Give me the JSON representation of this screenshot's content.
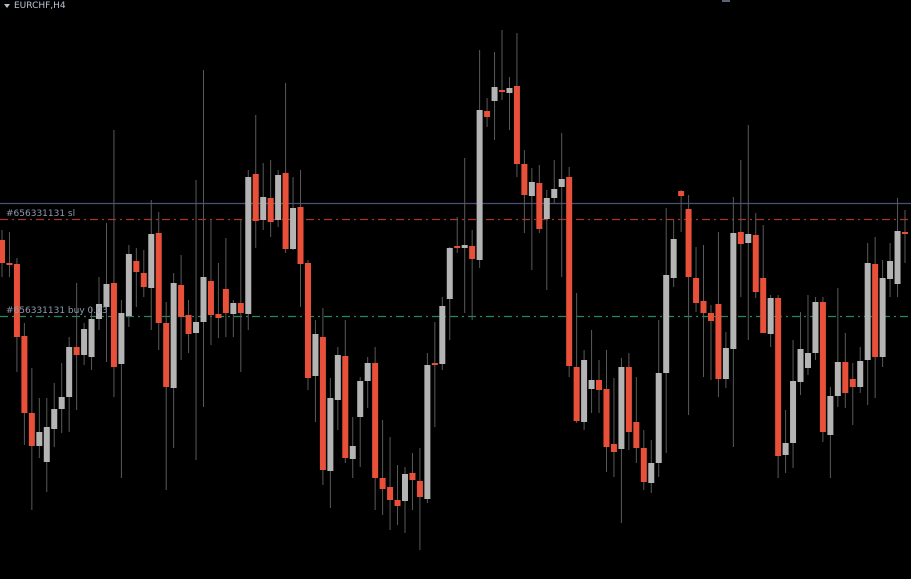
{
  "header": {
    "symbol_timeframe": "EURCHF,H4",
    "menu_icon": "triangle-down-icon"
  },
  "chart_data": {
    "type": "candlestick",
    "title": "EURCHF,H4",
    "xlabel": "",
    "ylabel": "",
    "ylim": [
      0,
      579
    ],
    "grid": false,
    "colors": {
      "background": "#000000",
      "bullish": "#b4b4b4",
      "bearish": "#e8503a",
      "bid_line": "#4a4f78",
      "sl_line": "#a8352a",
      "entry_line": "#1f8a5e"
    },
    "levels": [
      {
        "kind": "bid",
        "value": 376,
        "label": ""
      },
      {
        "kind": "sl",
        "value": 360,
        "label": "#656331131 sl"
      },
      {
        "kind": "entry",
        "value": 263,
        "label": "#656331131 buy 0.03"
      }
    ],
    "candles_ohlc": [
      [
        339,
        349,
        302,
        316
      ],
      [
        316,
        347,
        302,
        314
      ],
      [
        315,
        321,
        207,
        242
      ],
      [
        243,
        256,
        134,
        166
      ],
      [
        166,
        211,
        69,
        133
      ],
      [
        133,
        181,
        121,
        147
      ],
      [
        117,
        181,
        87,
        152
      ],
      [
        150,
        196,
        132,
        170
      ],
      [
        170,
        216,
        146,
        182
      ],
      [
        182,
        242,
        147,
        232
      ],
      [
        232,
        296,
        169,
        224
      ],
      [
        224,
        256,
        214,
        250
      ],
      [
        222,
        272,
        209,
        260
      ],
      [
        260,
        302,
        249,
        275
      ],
      [
        272,
        356,
        217,
        295
      ],
      [
        296,
        449,
        182,
        212
      ],
      [
        215,
        279,
        101,
        266
      ],
      [
        263,
        334,
        252,
        325
      ],
      [
        318,
        331,
        272,
        307
      ],
      [
        306,
        329,
        282,
        292
      ],
      [
        291,
        379,
        249,
        345
      ],
      [
        346,
        367,
        229,
        256
      ],
      [
        256,
        277,
        89,
        192
      ],
      [
        191,
        306,
        131,
        296
      ],
      [
        294,
        324,
        219,
        262
      ],
      [
        264,
        279,
        226,
        245
      ],
      [
        246,
        399,
        119,
        257
      ],
      [
        257,
        509,
        172,
        302
      ],
      [
        298,
        359,
        234,
        264
      ],
      [
        265,
        316,
        241,
        261
      ],
      [
        290,
        341,
        242,
        266
      ],
      [
        265,
        279,
        242,
        276
      ],
      [
        276,
        359,
        207,
        266
      ],
      [
        265,
        409,
        249,
        402
      ],
      [
        405,
        464,
        331,
        358
      ],
      [
        359,
        416,
        349,
        382
      ],
      [
        381,
        419,
        342,
        357
      ],
      [
        359,
        409,
        352,
        404
      ],
      [
        406,
        496,
        326,
        330
      ],
      [
        330,
        402,
        329,
        371
      ],
      [
        372,
        409,
        272,
        315
      ],
      [
        316,
        319,
        189,
        201
      ],
      [
        203,
        259,
        157,
        245
      ],
      [
        242,
        271,
        94,
        109
      ],
      [
        108,
        201,
        71,
        181
      ],
      [
        179,
        232,
        149,
        224
      ],
      [
        223,
        259,
        116,
        121
      ],
      [
        120,
        162,
        101,
        133
      ],
      [
        162,
        202,
        112,
        198
      ],
      [
        198,
        222,
        171,
        216
      ],
      [
        216,
        232,
        69,
        101
      ],
      [
        101,
        159,
        64,
        90
      ],
      [
        92,
        142,
        49,
        79
      ],
      [
        79,
        114,
        54,
        73
      ],
      [
        78,
        112,
        46,
        105
      ],
      [
        106,
        126,
        69,
        99
      ],
      [
        98,
        131,
        29,
        82
      ],
      [
        80,
        226,
        76,
        214
      ],
      [
        216,
        257,
        152,
        214
      ],
      [
        215,
        282,
        209,
        273
      ],
      [
        280,
        332,
        239,
        331
      ],
      [
        333,
        362,
        326,
        332
      ],
      [
        331,
        421,
        266,
        334
      ],
      [
        333,
        349,
        259,
        320
      ],
      [
        319,
        529,
        311,
        469
      ],
      [
        468,
        481,
        452,
        462
      ],
      [
        478,
        527,
        439,
        492
      ],
      [
        489,
        549,
        479,
        487
      ],
      [
        486,
        502,
        449,
        491
      ],
      [
        493,
        546,
        402,
        415
      ],
      [
        415,
        429,
        346,
        384
      ],
      [
        383,
        411,
        309,
        397
      ],
      [
        396,
        414,
        346,
        350
      ],
      [
        360,
        389,
        289,
        381
      ],
      [
        381,
        419,
        376,
        390
      ],
      [
        392,
        446,
        302,
        400
      ],
      [
        402,
        412,
        202,
        213
      ],
      [
        212,
        286,
        156,
        158
      ],
      [
        157,
        229,
        149,
        219
      ],
      [
        190,
        249,
        166,
        199
      ],
      [
        199,
        219,
        166,
        189
      ],
      [
        190,
        229,
        107,
        132
      ],
      [
        135,
        201,
        102,
        127
      ],
      [
        130,
        221,
        56,
        212
      ],
      [
        212,
        226,
        129,
        147
      ],
      [
        157,
        202,
        116,
        131
      ],
      [
        131,
        149,
        89,
        97
      ],
      [
        96,
        139,
        86,
        116
      ],
      [
        116,
        259,
        102,
        206
      ],
      [
        206,
        371,
        126,
        304
      ],
      [
        301,
        359,
        292,
        340
      ],
      [
        388,
        389,
        347,
        383
      ],
      [
        370,
        384,
        164,
        302
      ],
      [
        301,
        332,
        267,
        276
      ],
      [
        278,
        334,
        202,
        266
      ],
      [
        266,
        274,
        199,
        258
      ],
      [
        275,
        347,
        182,
        200
      ],
      [
        200,
        247,
        191,
        231
      ],
      [
        230,
        382,
        132,
        346
      ],
      [
        347,
        419,
        282,
        335
      ],
      [
        336,
        454,
        239,
        345
      ],
      [
        344,
        366,
        281,
        287
      ],
      [
        301,
        354,
        246,
        246
      ],
      [
        245,
        284,
        232,
        281
      ],
      [
        281,
        284,
        101,
        123
      ],
      [
        124,
        169,
        106,
        136
      ],
      [
        136,
        239,
        111,
        198
      ],
      [
        197,
        267,
        184,
        230
      ],
      [
        211,
        284,
        204,
        226
      ],
      [
        226,
        282,
        219,
        277
      ],
      [
        277,
        282,
        137,
        147
      ],
      [
        144,
        192,
        101,
        183
      ],
      [
        183,
        291,
        172,
        217
      ],
      [
        217,
        246,
        171,
        186
      ],
      [
        200,
        216,
        154,
        192
      ],
      [
        192,
        232,
        186,
        218
      ],
      [
        219,
        336,
        174,
        316
      ],
      [
        315,
        342,
        181,
        222
      ],
      [
        222,
        319,
        212,
        301
      ],
      [
        300,
        336,
        282,
        318
      ],
      [
        295,
        381,
        282,
        348
      ],
      [
        347,
        369,
        316,
        345
      ]
    ]
  }
}
